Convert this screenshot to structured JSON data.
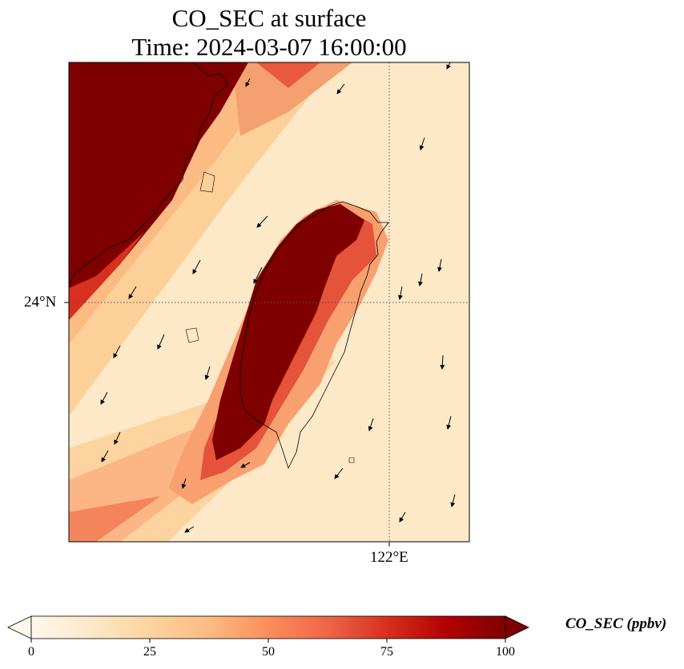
{
  "title": {
    "line1": "CO_SEC at surface",
    "line2": "Time: 2024-03-07 16:00:00"
  },
  "map": {
    "lat_label": "24°N",
    "lon_label": "122°E",
    "gridline_color": "#555555",
    "high_color": "#7f0000",
    "background_color": "#fde8c6"
  },
  "colorbar": {
    "label": "CO_SEC (ppbv)",
    "min": 0,
    "max": 100,
    "ticks": [
      "0",
      "25",
      "50",
      "75",
      "100"
    ],
    "colors": [
      "#fff7ec",
      "#fee8c8",
      "#fdd49e",
      "#fdbb84",
      "#fc8d59",
      "#ef6548",
      "#d7301f",
      "#b30000",
      "#7f0000"
    ]
  }
}
